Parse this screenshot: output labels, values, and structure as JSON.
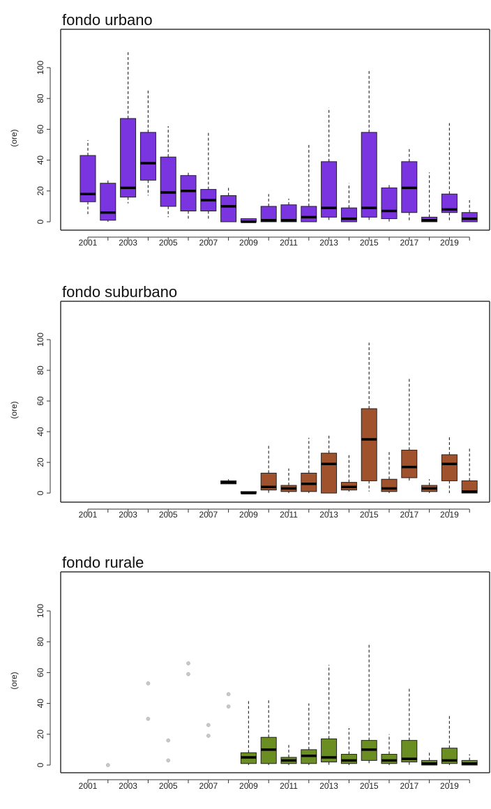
{
  "chart_data": [
    {
      "type": "boxplot",
      "title": "fondo urbano",
      "ylabel": "(ore)",
      "ylim": [
        0,
        120
      ],
      "yticks": [
        0,
        20,
        40,
        60,
        80,
        100
      ],
      "categories": [
        "2001",
        "2002",
        "2003",
        "2004",
        "2005",
        "2006",
        "2007",
        "2008",
        "2009",
        "2010",
        "2011",
        "2012",
        "2013",
        "2014",
        "2015",
        "2016",
        "2017",
        "2018",
        "2019",
        "2020"
      ],
      "xtick_labels": [
        "2001",
        "2003",
        "2005",
        "2007",
        "2009",
        "2011",
        "2013",
        "2015",
        "2017",
        "2019"
      ],
      "color": "#7b35e0",
      "boxes": [
        {
          "q1": 13,
          "median": 18,
          "q3": 43,
          "whisker_low": 5,
          "whisker_high": 53
        },
        {
          "q1": 1,
          "median": 6,
          "q3": 25,
          "whisker_low": 0,
          "whisker_high": 28
        },
        {
          "q1": 16,
          "median": 22,
          "q3": 67,
          "whisker_low": 12,
          "whisker_high": 111
        },
        {
          "q1": 27,
          "median": 38,
          "q3": 58,
          "whisker_low": 17,
          "whisker_high": 86
        },
        {
          "q1": 10,
          "median": 19,
          "q3": 42,
          "whisker_low": 3,
          "whisker_high": 62
        },
        {
          "q1": 7,
          "median": 20,
          "q3": 30,
          "whisker_low": 2,
          "whisker_high": 33
        },
        {
          "q1": 7,
          "median": 14,
          "q3": 21,
          "whisker_low": 2,
          "whisker_high": 59
        },
        {
          "q1": 0,
          "median": 10,
          "q3": 17,
          "whisker_low": 0,
          "whisker_high": 22
        },
        {
          "q1": 0,
          "median": 0,
          "q3": 2,
          "whisker_low": 0,
          "whisker_high": 2
        },
        {
          "q1": 0,
          "median": 1,
          "q3": 10,
          "whisker_low": 0,
          "whisker_high": 18
        },
        {
          "q1": 0,
          "median": 1,
          "q3": 11,
          "whisker_low": 0,
          "whisker_high": 15
        },
        {
          "q1": 0,
          "median": 3,
          "q3": 10,
          "whisker_low": 0,
          "whisker_high": 50
        },
        {
          "q1": 3,
          "median": 9,
          "q3": 39,
          "whisker_low": 0,
          "whisker_high": 74
        },
        {
          "q1": 0,
          "median": 2,
          "q3": 9,
          "whisker_low": 0,
          "whisker_high": 25
        },
        {
          "q1": 3,
          "median": 9,
          "q3": 58,
          "whisker_low": 0,
          "whisker_high": 99
        },
        {
          "q1": 2,
          "median": 7,
          "q3": 22,
          "whisker_low": 0,
          "whisker_high": 25
        },
        {
          "q1": 6,
          "median": 22,
          "q3": 39,
          "whisker_low": 1,
          "whisker_high": 48
        },
        {
          "q1": 0,
          "median": 1,
          "q3": 3,
          "whisker_low": 0,
          "whisker_high": 32
        },
        {
          "q1": 6,
          "median": 8,
          "q3": 18,
          "whisker_low": 1,
          "whisker_high": 64
        },
        {
          "q1": 0,
          "median": 2,
          "q3": 6,
          "whisker_low": 0,
          "whisker_high": 14
        }
      ]
    },
    {
      "type": "boxplot",
      "title": "fondo suburbano",
      "ylabel": "(ore)",
      "ylim": [
        0,
        120
      ],
      "yticks": [
        0,
        20,
        40,
        60,
        80,
        100
      ],
      "categories": [
        "2001",
        "2002",
        "2003",
        "2004",
        "2005",
        "2006",
        "2007",
        "2008",
        "2009",
        "2010",
        "2011",
        "2012",
        "2013",
        "2014",
        "2015",
        "2016",
        "2017",
        "2018",
        "2019",
        "2020"
      ],
      "xtick_labels": [
        "2001",
        "2003",
        "2005",
        "2007",
        "2009",
        "2011",
        "2013",
        "2015",
        "2017",
        "2019"
      ],
      "color": "#a0522d",
      "boxes": [
        null,
        null,
        null,
        null,
        null,
        null,
        null,
        {
          "q1": 6,
          "median": 7,
          "q3": 8,
          "whisker_low": 6,
          "whisker_high": 9
        },
        {
          "q1": 0,
          "median": 0,
          "q3": 1,
          "whisker_low": 0,
          "whisker_high": 1
        },
        {
          "q1": 2,
          "median": 4,
          "q3": 13,
          "whisker_low": 0,
          "whisker_high": 31
        },
        {
          "q1": 1,
          "median": 3,
          "q3": 5,
          "whisker_low": 0,
          "whisker_high": 16
        },
        {
          "q1": 1,
          "median": 6,
          "q3": 13,
          "whisker_low": 0,
          "whisker_high": 36
        },
        {
          "q1": 0,
          "median": 19,
          "q3": 26,
          "whisker_low": 0,
          "whisker_high": 38
        },
        {
          "q1": 2,
          "median": 4,
          "q3": 7,
          "whisker_low": 1,
          "whisker_high": 25
        },
        {
          "q1": 8,
          "median": 35,
          "q3": 55,
          "whisker_low": 1,
          "whisker_high": 98
        },
        {
          "q1": 1,
          "median": 3,
          "q3": 9,
          "whisker_low": 0,
          "whisker_high": 28
        },
        {
          "q1": 10,
          "median": 17,
          "q3": 28,
          "whisker_low": 7,
          "whisker_high": 75
        },
        {
          "q1": 1,
          "median": 3,
          "q3": 5,
          "whisker_low": 0,
          "whisker_high": 9
        },
        {
          "q1": 8,
          "median": 19,
          "q3": 25,
          "whisker_low": 0,
          "whisker_high": 37
        },
        {
          "q1": 0,
          "median": 1,
          "q3": 8,
          "whisker_low": 0,
          "whisker_high": 30
        }
      ]
    },
    {
      "type": "boxplot",
      "title": "fondo rurale",
      "ylabel": "(ore)",
      "ylim": [
        0,
        120
      ],
      "yticks": [
        0,
        20,
        40,
        60,
        80,
        100
      ],
      "categories": [
        "2001",
        "2002",
        "2003",
        "2004",
        "2005",
        "2006",
        "2007",
        "2008",
        "2009",
        "2010",
        "2011",
        "2012",
        "2013",
        "2014",
        "2015",
        "2016",
        "2017",
        "2018",
        "2019",
        "2020"
      ],
      "xtick_labels": [
        "2001",
        "2003",
        "2005",
        "2007",
        "2009",
        "2011",
        "2013",
        "2015",
        "2017",
        "2019"
      ],
      "color": "#6b8e23",
      "boxes": [
        null,
        null,
        null,
        null,
        null,
        null,
        null,
        null,
        {
          "q1": 1,
          "median": 5,
          "q3": 8,
          "whisker_low": 0,
          "whisker_high": 42
        },
        {
          "q1": 1,
          "median": 10,
          "q3": 18,
          "whisker_low": 0,
          "whisker_high": 42
        },
        {
          "q1": 1,
          "median": 3,
          "q3": 5,
          "whisker_low": 0,
          "whisker_high": 13
        },
        {
          "q1": 1,
          "median": 6,
          "q3": 10,
          "whisker_low": 0,
          "whisker_high": 40
        },
        {
          "q1": 2,
          "median": 5,
          "q3": 17,
          "whisker_low": 0,
          "whisker_high": 65
        },
        {
          "q1": 1,
          "median": 3,
          "q3": 7,
          "whisker_low": 0,
          "whisker_high": 24
        },
        {
          "q1": 3,
          "median": 10,
          "q3": 16,
          "whisker_low": 0,
          "whisker_high": 79
        },
        {
          "q1": 1,
          "median": 3,
          "q3": 7,
          "whisker_low": 0,
          "whisker_high": 20
        },
        {
          "q1": 2,
          "median": 4,
          "q3": 16,
          "whisker_low": 0,
          "whisker_high": 50
        },
        {
          "q1": 0,
          "median": 1,
          "q3": 3,
          "whisker_low": 0,
          "whisker_high": 8
        },
        {
          "q1": 1,
          "median": 3,
          "q3": 11,
          "whisker_low": 0,
          "whisker_high": 32
        },
        {
          "q1": 0,
          "median": 1,
          "q3": 3,
          "whisker_low": 0,
          "whisker_high": 7
        }
      ],
      "points": [
        {
          "category": "2002",
          "value": 0
        },
        {
          "category": "2004",
          "value": 30
        },
        {
          "category": "2004",
          "value": 53
        },
        {
          "category": "2005",
          "value": 3
        },
        {
          "category": "2005",
          "value": 16
        },
        {
          "category": "2006",
          "value": 59
        },
        {
          "category": "2006",
          "value": 66
        },
        {
          "category": "2007",
          "value": 19
        },
        {
          "category": "2007",
          "value": 26
        },
        {
          "category": "2008",
          "value": 38
        },
        {
          "category": "2008",
          "value": 46
        }
      ]
    }
  ]
}
